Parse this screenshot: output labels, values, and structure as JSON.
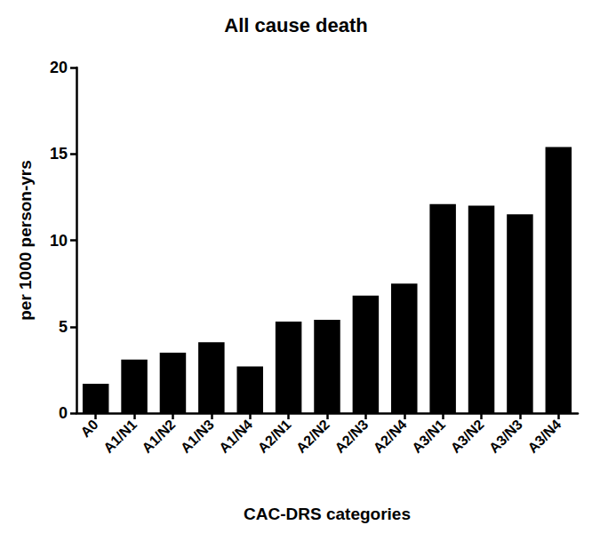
{
  "chart_data": {
    "type": "bar",
    "title": "All cause death",
    "x_label": "CAC-DRS categories",
    "y_label": "per 1000 person-yrs",
    "categories": [
      "A0",
      "A1/N1",
      "A1/N2",
      "A1/N3",
      "A1/N4",
      "A2/N1",
      "A2/N2",
      "A2/N3",
      "A2/N4",
      "A3/N1",
      "A3/N2",
      "A3/N3",
      "A3/N4"
    ],
    "values": [
      1.7,
      3.1,
      3.5,
      4.1,
      2.7,
      5.3,
      5.4,
      6.8,
      7.5,
      12.1,
      12.0,
      11.5,
      15.4
    ],
    "color": "#000000",
    "ylim": [
      0,
      20
    ],
    "yticks": [
      0,
      5,
      10,
      15,
      20
    ],
    "grid": false
  }
}
